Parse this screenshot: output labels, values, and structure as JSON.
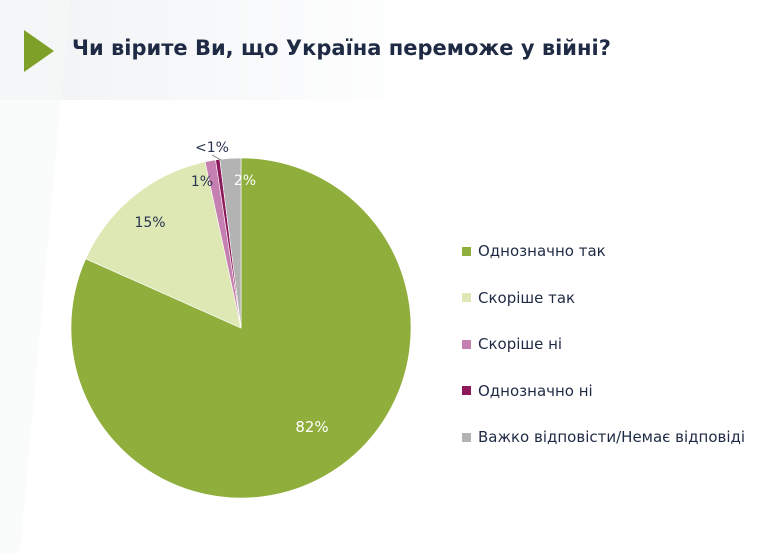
{
  "title": "Чи вірите Ви, що Україна переможе у війні?",
  "colors": {
    "title": "#1f2a44",
    "accent": "#8aab3c",
    "header_bg": "#f2f4f6"
  },
  "chart_data": {
    "type": "pie",
    "title": "Чи вірите Ви, що Україна переможе у війні?",
    "legend_position": "right",
    "slices": [
      {
        "label": "Однозначно так",
        "value": 82,
        "display": "82%",
        "color": "#8fae3c"
      },
      {
        "label": "Скоріше так",
        "value": 15,
        "display": "15%",
        "color": "#dde8b4"
      },
      {
        "label": "Скоріше ні",
        "value": 1,
        "display": "1%",
        "color": "#c57fb0"
      },
      {
        "label": "Однозначно ні",
        "value": 0.4,
        "display": "<1%",
        "color": "#8c1a5a"
      },
      {
        "label": "Важко відповісти/Немає відповіді",
        "value": 2,
        "display": "2%",
        "color": "#b3b3b3"
      }
    ]
  }
}
